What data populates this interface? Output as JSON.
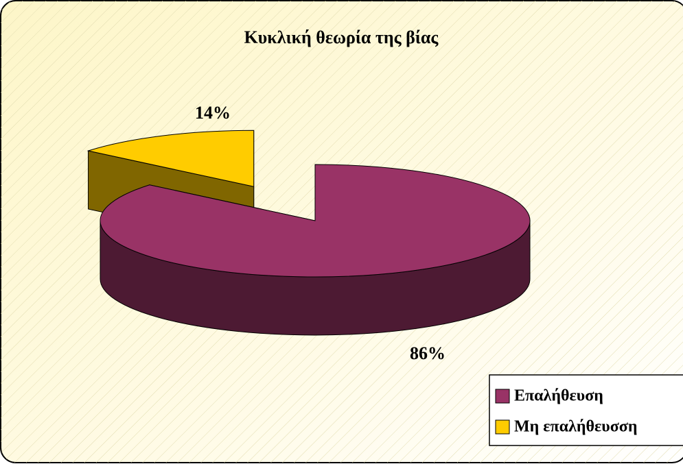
{
  "chart_data": {
    "type": "pie3d",
    "title": "Κυκλική θεωρία της βίας",
    "categories": [
      "Επαλήθευση",
      "Μη επαλήθευσση"
    ],
    "values": [
      86,
      14
    ],
    "value_labels": [
      "86%",
      "14%"
    ],
    "colors": [
      "#993366",
      "#ffcc00"
    ],
    "legend": "bottom-right"
  }
}
